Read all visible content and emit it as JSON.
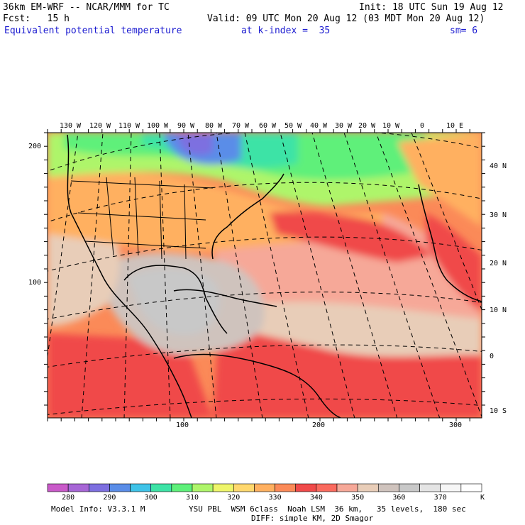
{
  "header": {
    "title": "36km EM-WRF -- NCAR/MMM for TC",
    "init": "Init: 18 UTC Sun 19 Aug 12",
    "fcst": "Fcst:   15 h",
    "valid": "Valid: 09 UTC Mon 20 Aug 12 (03 MDT Mon 20 Aug 12)",
    "field": "Equivalent potential temperature",
    "level": "at k-index =  35",
    "smooth": "sm= 6"
  },
  "map": {
    "top_lon_labels": [
      "130 W",
      "120 W",
      "110 W",
      "100 W",
      "90 W",
      "80 W",
      "70 W",
      "60 W",
      "50 W",
      "40 W",
      "30 W",
      "20 W",
      "10 W",
      "0",
      "10 E"
    ],
    "right_lat_labels": [
      "40 N",
      "30 N",
      "20 N",
      "10 N",
      "0",
      "10 S"
    ],
    "left_grid_labels": [
      "200",
      "100"
    ],
    "bottom_grid_labels": [
      "100",
      "200",
      "300"
    ]
  },
  "colorbar": {
    "labels": [
      "280",
      "290",
      "300",
      "310",
      "320",
      "330",
      "340",
      "350",
      "360",
      "370"
    ],
    "units": "K",
    "colors": [
      "#c95ac9",
      "#a766d6",
      "#7d6fe0",
      "#5a8de8",
      "#3fc3e8",
      "#3de3a6",
      "#5ef07a",
      "#aef56a",
      "#eef56a",
      "#ffd86e",
      "#ffb060",
      "#fb8a58",
      "#f04a4a",
      "#fa6a5e",
      "#f6a898",
      "#e8cdb8",
      "#cfc3bd",
      "#c8c8c8",
      "#e4e4e4",
      "#f6f6f6",
      "#ffffff"
    ]
  },
  "footer": {
    "model": "Model Info: V3.3.1 M",
    "physics": "YSU PBL  WSM 6class  Noah LSM  36 km,   35 levels,  180 sec",
    "diff": "DIFF: simple KM, 2D Smagor"
  }
}
